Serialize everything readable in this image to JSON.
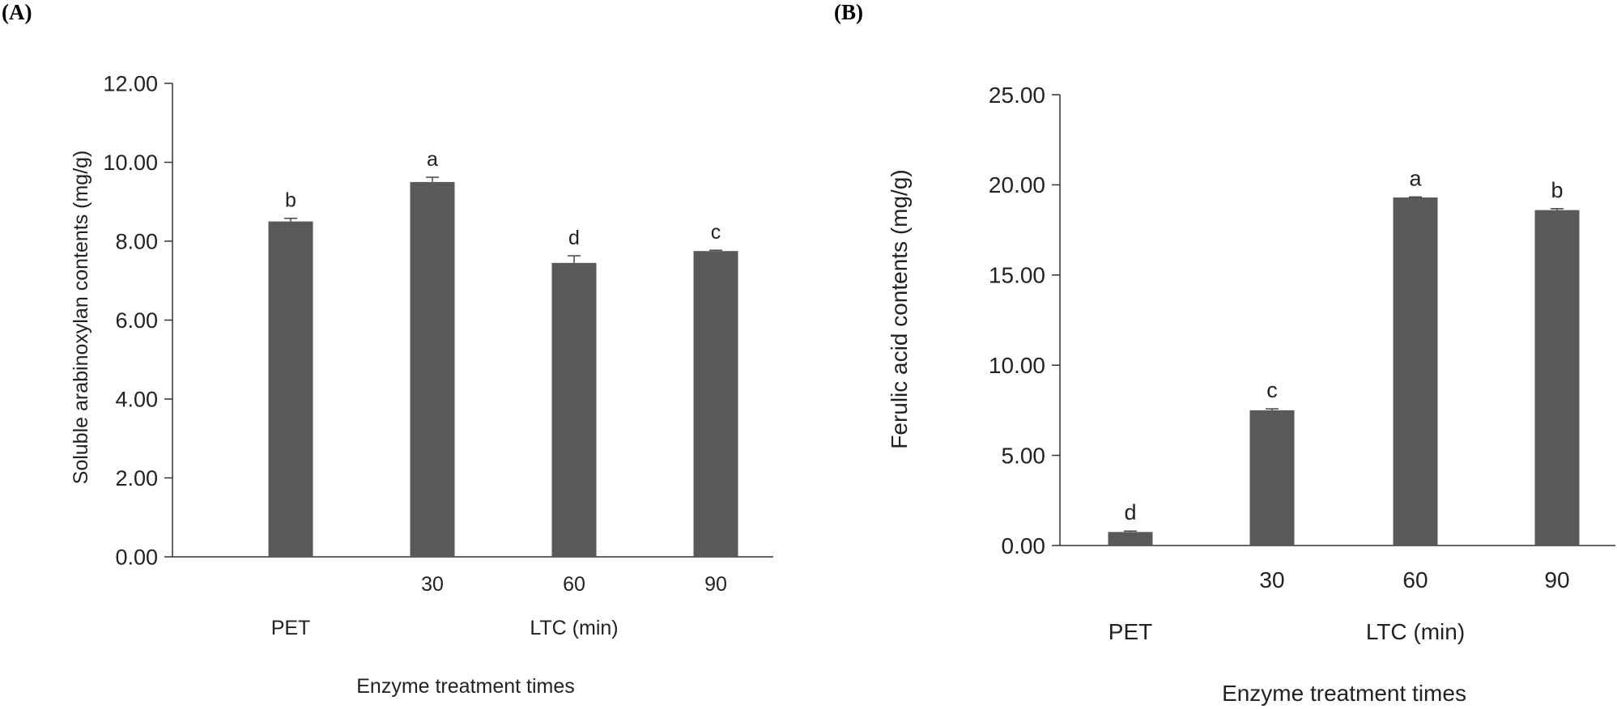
{
  "panel_labels": [
    "(A)",
    "(B)"
  ],
  "chart_data": [
    {
      "type": "bar",
      "categories": [
        "",
        "30",
        "60",
        "90"
      ],
      "group_labels": [
        "PET",
        "LTC (min)"
      ],
      "values": [
        8.5,
        9.5,
        7.45,
        7.75
      ],
      "errors": [
        0.08,
        0.12,
        0.18,
        0.02
      ],
      "significance_letters": [
        "b",
        "a",
        "d",
        "c"
      ],
      "xlabel": "Enzyme treatment times",
      "ylabel": "Soluble arabinoxylan contents (mg/g)",
      "ylim": [
        0,
        12
      ],
      "yticks": [
        "0.00",
        "2.00",
        "4.00",
        "6.00",
        "8.00",
        "10.00",
        "12.00"
      ],
      "bar_color": "#595959",
      "grid": false
    },
    {
      "type": "bar",
      "categories": [
        "",
        "30",
        "60",
        "90"
      ],
      "group_labels": [
        "PET",
        "LTC (min)"
      ],
      "values": [
        0.75,
        7.5,
        19.3,
        18.6
      ],
      "errors": [
        0.05,
        0.08,
        0.03,
        0.08
      ],
      "significance_letters": [
        "d",
        "c",
        "a",
        "b"
      ],
      "xlabel": "Enzyme treatment times",
      "ylabel": "Ferulic acid contents (mg/g)",
      "ylim": [
        0,
        25
      ],
      "yticks": [
        "0.00",
        "5.00",
        "10.00",
        "15.00",
        "20.00",
        "25.00"
      ],
      "bar_color": "#595959",
      "grid": false
    }
  ]
}
